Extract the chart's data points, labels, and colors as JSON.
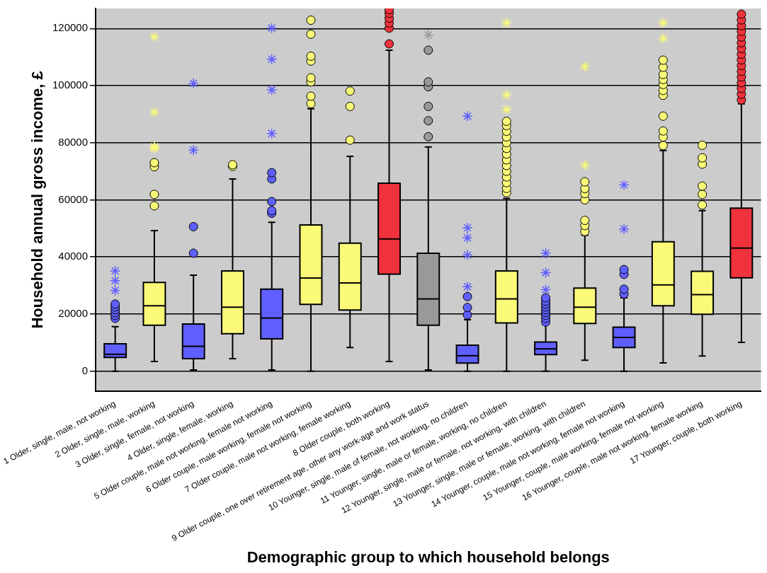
{
  "chart_data": {
    "type": "box",
    "xlabel": "Demographic group to which household belongs",
    "ylabel": "Household annual gross income, £",
    "categories": [
      "1 Older, single, male, not working",
      "2 Older, single, male, working",
      "3 Older, single, female, not working",
      "4 Older, single, female, working",
      "5 Older couple, male not working, female not working",
      "6 Older couple, male working, female not working",
      "7 Older couple, male not working, female working",
      "8 Older couple, both working",
      "9 Older couple, one over retirement age, other any work-age and work status",
      "10 Younger, single, male of female, not working, no children",
      "11 Younger, single, male or female, working, no children",
      "12 Younger, single, male or female, not working, with children",
      "13 Younger, single, male or female, working, with children",
      "14 Younger, couple, male not working, female not working",
      "15 Younger, couple, male working, female not working",
      "16 Younger, couple, male not working, female working",
      "17 Younger, couple, both working"
    ],
    "ylim": [
      -7000,
      127000
    ],
    "yticks": [
      0,
      20000,
      40000,
      60000,
      80000,
      100000,
      120000
    ],
    "grid": "y",
    "legend": false,
    "series": [
      {
        "colors": [
          "#5f5fff",
          "#fafa78",
          "#5f5fff",
          "#fafa78",
          "#5f5fff",
          "#fafa78",
          "#fafa78",
          "#f0323c",
          "#999999",
          "#5f5fff",
          "#fafa78",
          "#5f5fff",
          "#fafa78",
          "#5f5fff",
          "#fafa78",
          "#fafa78",
          "#f0323c"
        ],
        "boxes": [
          {
            "low": 0,
            "q1": 4800,
            "median": 5900,
            "q3": 9600,
            "high": 15600,
            "outliers": [
              18500,
              19500,
              20500,
              21500,
              22500,
              23500
            ]
          },
          {
            "low": 3400,
            "q1": 16100,
            "median": 22900,
            "q3": 31100,
            "high": 49200,
            "outliers": [
              57900,
              61900,
              71600,
              73000
            ]
          },
          {
            "low": 400,
            "q1": 4400,
            "median": 8700,
            "q3": 16500,
            "high": 33600,
            "outliers": [
              41300,
              50600
            ]
          },
          {
            "low": 4400,
            "q1": 13100,
            "median": 22400,
            "q3": 35100,
            "high": 67300,
            "outliers": [
              71700,
              72300
            ]
          },
          {
            "low": 400,
            "q1": 11300,
            "median": 18600,
            "q3": 28700,
            "high": 52100,
            "outliers": [
              55300,
              56200,
              59400,
              67300,
              69500
            ]
          },
          {
            "low": 0,
            "q1": 23400,
            "median": 32600,
            "q3": 51200,
            "high": 91900,
            "outliers": [
              93700,
              96300,
              101300,
              102700,
              108600,
              110300,
              118000,
              122900
            ]
          },
          {
            "low": 8300,
            "q1": 21400,
            "median": 30900,
            "q3": 44800,
            "high": 75200,
            "outliers": [
              80900,
              92700,
              98100
            ]
          },
          {
            "low": 3400,
            "q1": 34000,
            "median": 46300,
            "q3": 65800,
            "high": 112400,
            "outliers": [
              114600,
              120100,
              121900,
              123600,
              125300,
              126600
            ]
          },
          {
            "low": 400,
            "q1": 16100,
            "median": 25300,
            "q3": 41300,
            "high": 78500,
            "outliers": [
              82100,
              87700,
              92700,
              99600,
              101300,
              112400
            ]
          },
          {
            "low": 0,
            "q1": 2800,
            "median": 5400,
            "q3": 9100,
            "high": 18000,
            "outliers": [
              19700,
              22300,
              26100
            ]
          },
          {
            "low": 0,
            "q1": 16900,
            "median": 25300,
            "q3": 35100,
            "high": 60500,
            "outliers": [
              62500,
              64000,
              66000,
              68000,
              70000,
              72000,
              74000,
              76000,
              78000,
              80000,
              82000,
              84000,
              86000,
              87500
            ]
          },
          {
            "low": 0,
            "q1": 5800,
            "median": 7800,
            "q3": 10200,
            "high": 16300,
            "outliers": [
              17200,
              18500,
              19500,
              20500,
              21500,
              22500,
              23500,
              24500,
              25700
            ]
          },
          {
            "low": 3800,
            "q1": 16700,
            "median": 22400,
            "q3": 29100,
            "high": 47600,
            "outliers": [
              48900,
              51000,
              52800,
              60000,
              62200,
              63900,
              66300
            ]
          },
          {
            "low": 0,
            "q1": 8300,
            "median": 11800,
            "q3": 15400,
            "high": 25700,
            "outliers": [
              27000,
              28700,
              33900,
              35600
            ]
          },
          {
            "low": 2900,
            "q1": 22900,
            "median": 30200,
            "q3": 45300,
            "high": 77300,
            "outliers": [
              79000,
              82000,
              84100,
              89300,
              96600,
              98300,
              100400,
              102100,
              103900,
              106400,
              108900
            ]
          },
          {
            "low": 5300,
            "q1": 19900,
            "median": 26800,
            "q3": 35000,
            "high": 56200,
            "outliers": [
              58200,
              61900,
              64800,
              72500,
              74700,
              79100
            ]
          },
          {
            "low": 10100,
            "q1": 32700,
            "median": 43100,
            "q3": 57100,
            "high": 93600,
            "outliers": [
              95000,
              97000,
              99000,
              101000,
              103000,
              105000,
              107000,
              109000,
              111000,
              113000,
              115000,
              117000,
              119000,
              121000,
              123000,
              125000
            ]
          }
        ]
      },
      {
        "type": "scatter",
        "marker": "cross",
        "x": [
          "1 Older, single, male, not working",
          "1 Older, single, male, not working",
          "1 Older, single, male, not working",
          "2 Older, single, male, working",
          "2 Older, single, male, working",
          "2 Older, single, male, working",
          "2 Older, single, male, working",
          "3 Older, single, female, not working",
          "3 Older, single, female, not working",
          "5 Older couple, male not working, female not working",
          "5 Older couple, male not working, female not working",
          "5 Older couple, male not working, female not working",
          "5 Older couple, male not working, female not working",
          "9 Older couple, one over retirement age, other any work-age and work status",
          "10 Younger, single, male of female, not working, no children",
          "10 Younger, single, male of female, not working, no children",
          "10 Younger, single, male of female, not working, no children",
          "10 Younger, single, male of female, not working, no children",
          "10 Younger, single, male of female, not working, no children",
          "11 Younger, single, male or female, working, no children",
          "11 Younger, single, male or female, working, no children",
          "11 Younger, single, male or female, working, no children",
          "12 Younger, single, male or female, not working, with children",
          "12 Younger, single, male or female, not working, with children",
          "12 Younger, single, male or female, not working, with children",
          "12 Younger, single, male or female, not working, with children",
          "13 Younger, single, male or female, working, with children",
          "13 Younger, single, male or female, working, with children",
          "14 Younger, couple, male not working, female not working",
          "14 Younger, couple, male not working, female not working",
          "15 Younger, couple, male working, female not working",
          "15 Younger, couple, male working, female not working"
        ],
        "values": [
          28300,
          31700,
          35100,
          78000,
          78600,
          90700,
          117000,
          77400,
          100800,
          83200,
          98500,
          109200,
          120100,
          117700,
          29600,
          40700,
          46700,
          50200,
          89300,
          91600,
          96800,
          122000,
          null,
          28500,
          34500,
          41300,
          72100,
          106600,
          49800,
          65200,
          116500,
          122000
        ],
        "colors": [
          "#5f5fff",
          "#5f5fff",
          "#5f5fff",
          "#fafa78",
          "#fafa78",
          "#fafa78",
          "#fafa78",
          "#5f5fff",
          "#5f5fff",
          "#5f5fff",
          "#5f5fff",
          "#5f5fff",
          "#5f5fff",
          "#999999",
          "#5f5fff",
          "#5f5fff",
          "#5f5fff",
          "#5f5fff",
          "#5f5fff",
          "#fafa78",
          "#fafa78",
          "#fafa78",
          "#5f5fff",
          "#5f5fff",
          "#5f5fff",
          "#5f5fff",
          "#fafa78",
          "#fafa78",
          "#5f5fff",
          "#5f5fff",
          "#fafa78",
          "#fafa78"
        ]
      }
    ]
  }
}
